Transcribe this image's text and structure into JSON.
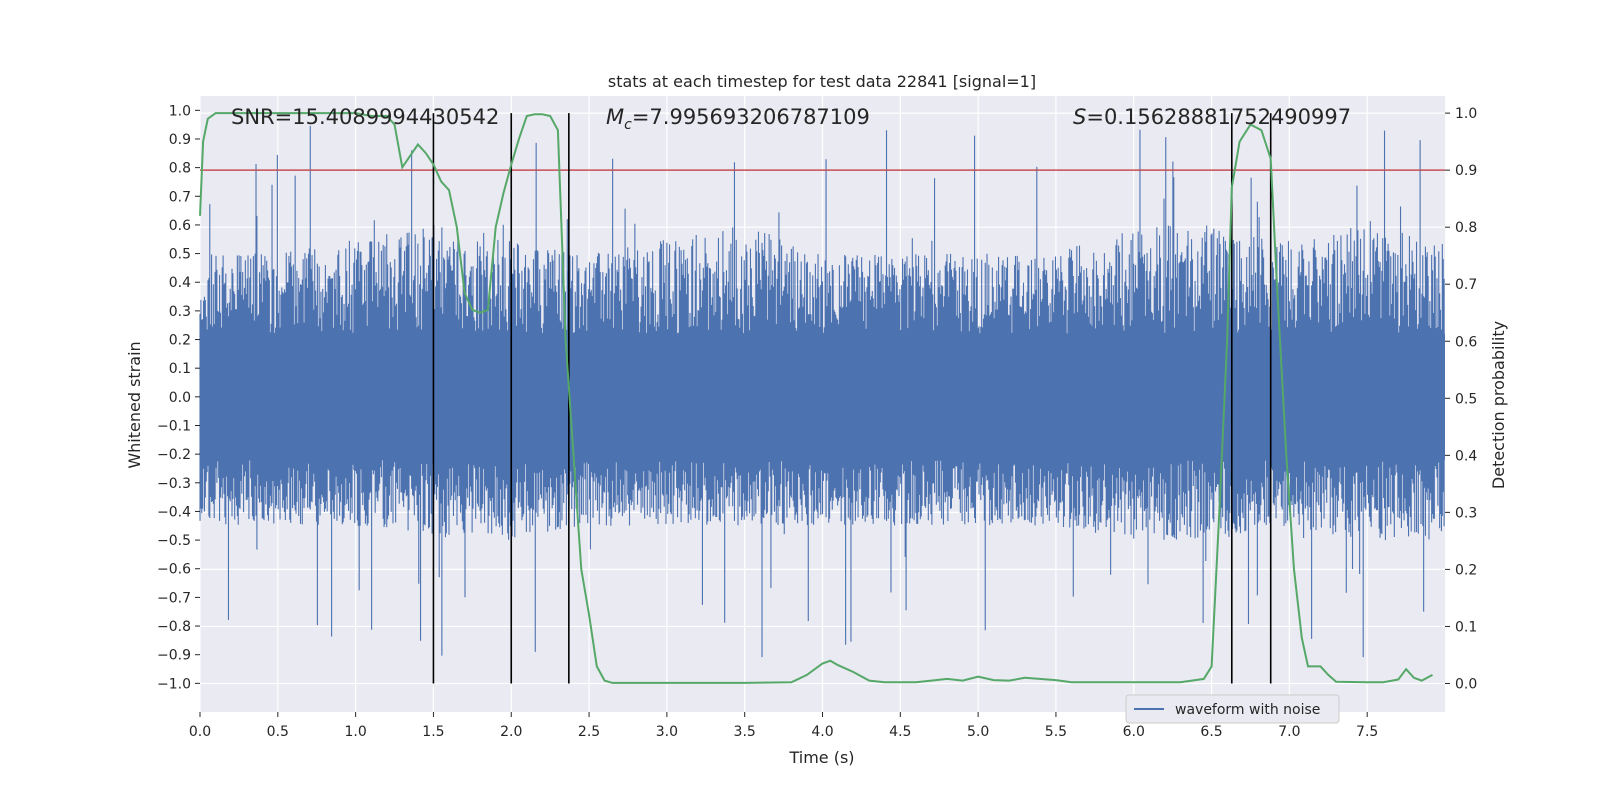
{
  "chart_data": {
    "type": "line",
    "title": "stats at each timestep for test data 22841 [signal=1]",
    "xlabel": "Time (s)",
    "ylabel_left": "Whitened strain",
    "ylabel_right": "Detection probability",
    "xlim": [
      0.0,
      8.0
    ],
    "ylim_left": [
      -1.1,
      1.05
    ],
    "ylim_right": [
      -0.05,
      1.03
    ],
    "xticks": [
      0.0,
      0.5,
      1.0,
      1.5,
      2.0,
      2.5,
      3.0,
      3.5,
      4.0,
      4.5,
      5.0,
      5.5,
      6.0,
      6.5,
      7.0,
      7.5
    ],
    "xtick_labels": [
      "0.0",
      "0.5",
      "1.0",
      "1.5",
      "2.0",
      "2.5",
      "3.0",
      "3.5",
      "4.0",
      "4.5",
      "5.0",
      "5.5",
      "6.0",
      "6.5",
      "7.0",
      "7.5"
    ],
    "yticks_left": [
      1.0,
      0.9,
      0.8,
      0.7,
      0.6,
      0.5,
      0.4,
      0.3,
      0.2,
      0.1,
      0.0,
      -0.1,
      -0.2,
      -0.3,
      -0.4,
      -0.5,
      -0.6,
      -0.7,
      -0.8,
      -0.9,
      -1.0
    ],
    "ytick_labels_left": [
      "1.0",
      "0.9",
      "0.8",
      "0.7",
      "0.6",
      "0.5",
      "0.4",
      "0.3",
      "0.2",
      "0.1",
      "0.0",
      "−0.1",
      "−0.2",
      "−0.3",
      "−0.4",
      "−0.5",
      "−0.6",
      "−0.7",
      "−0.8",
      "−0.9",
      "−1.0"
    ],
    "yticks_right": [
      1.0,
      0.9,
      0.8,
      0.7,
      0.6,
      0.5,
      0.4,
      0.3,
      0.2,
      0.1,
      0.0
    ],
    "ytick_labels_right": [
      "1.0",
      "0.9",
      "0.8",
      "0.7",
      "0.6",
      "0.5",
      "0.4",
      "0.3",
      "0.2",
      "0.1",
      "0.0"
    ],
    "annotations": {
      "snr": "SNR=15.4089994430542",
      "mc_symbol": "M",
      "mc_sub": "c",
      "mc_value": "=7.995693206787109",
      "s_symbol": "S",
      "s_value": "=0.15628881752490997"
    },
    "threshold": 0.9,
    "vertical_markers": [
      1.5,
      2.0,
      2.37,
      6.63,
      6.88
    ],
    "legend": {
      "label": "waveform with noise",
      "placement": "lower-right"
    },
    "waveform_envelope": {
      "x": [
        0.0,
        0.5,
        1.0,
        1.5,
        2.0,
        2.5,
        3.0,
        3.5,
        4.0,
        4.5,
        5.0,
        5.5,
        6.0,
        6.5,
        7.0,
        7.5,
        8.0
      ],
      "upper": [
        0.5,
        0.5,
        0.55,
        0.6,
        0.55,
        0.5,
        0.55,
        0.6,
        0.5,
        0.5,
        0.5,
        0.5,
        0.6,
        0.6,
        0.55,
        0.6,
        0.55
      ],
      "lower": [
        -0.45,
        -0.45,
        -0.45,
        -0.5,
        -0.5,
        -0.45,
        -0.45,
        -0.45,
        -0.45,
        -0.45,
        -0.45,
        -0.45,
        -0.5,
        -0.5,
        -0.45,
        -0.5,
        -0.5
      ],
      "core": 0.22,
      "peak_max": 0.95,
      "trough_min": -0.92,
      "num_samples": 1400
    },
    "series": [
      {
        "name": "waveform with noise",
        "axis": "left",
        "color": "#4c72b0"
      },
      {
        "axis": "right",
        "color": "#55a868",
        "x": [
          0.0,
          0.02,
          0.05,
          0.1,
          0.2,
          0.4,
          0.6,
          0.8,
          1.0,
          1.1,
          1.2,
          1.25,
          1.3,
          1.4,
          1.45,
          1.5,
          1.55,
          1.6,
          1.65,
          1.7,
          1.75,
          1.8,
          1.85,
          1.9,
          1.95,
          2.0,
          2.05,
          2.1,
          2.15,
          2.2,
          2.25,
          2.3,
          2.35,
          2.4,
          2.45,
          2.5,
          2.55,
          2.6,
          2.65,
          2.7,
          3.0,
          3.5,
          3.8,
          3.9,
          4.0,
          4.05,
          4.1,
          4.2,
          4.3,
          4.4,
          4.6,
          4.7,
          4.8,
          4.9,
          5.0,
          5.1,
          5.2,
          5.3,
          5.5,
          5.6,
          5.8,
          6.0,
          6.3,
          6.45,
          6.5,
          6.55,
          6.6,
          6.63,
          6.68,
          6.75,
          6.82,
          6.88,
          6.92,
          6.98,
          7.03,
          7.08,
          7.12,
          7.2,
          7.25,
          7.3,
          7.5,
          7.6,
          7.7,
          7.75,
          7.8,
          7.85,
          7.92
        ],
        "y": [
          0.82,
          0.95,
          0.99,
          1.0,
          1.0,
          1.0,
          1.0,
          1.0,
          1.0,
          0.995,
          0.995,
          0.98,
          0.905,
          0.945,
          0.93,
          0.91,
          0.88,
          0.865,
          0.8,
          0.685,
          0.655,
          0.65,
          0.655,
          0.8,
          0.86,
          0.91,
          0.955,
          0.995,
          0.998,
          0.998,
          0.995,
          0.97,
          0.6,
          0.4,
          0.2,
          0.12,
          0.03,
          0.005,
          0.001,
          0.001,
          0.001,
          0.001,
          0.002,
          0.015,
          0.035,
          0.04,
          0.032,
          0.02,
          0.005,
          0.002,
          0.002,
          0.005,
          0.008,
          0.005,
          0.012,
          0.006,
          0.005,
          0.01,
          0.006,
          0.002,
          0.002,
          0.002,
          0.002,
          0.008,
          0.03,
          0.3,
          0.6,
          0.87,
          0.95,
          0.98,
          0.97,
          0.92,
          0.7,
          0.4,
          0.2,
          0.08,
          0.03,
          0.03,
          0.015,
          0.003,
          0.002,
          0.002,
          0.007,
          0.025,
          0.01,
          0.005,
          0.015
        ]
      },
      {
        "axis": "right",
        "color": "#c44e52",
        "x": [
          0.0,
          8.0
        ],
        "y": [
          0.9,
          0.9
        ]
      }
    ],
    "grid": true,
    "colors": {
      "background": "#eaeaf2",
      "grid": "#ffffff",
      "marker": "#000000"
    }
  }
}
